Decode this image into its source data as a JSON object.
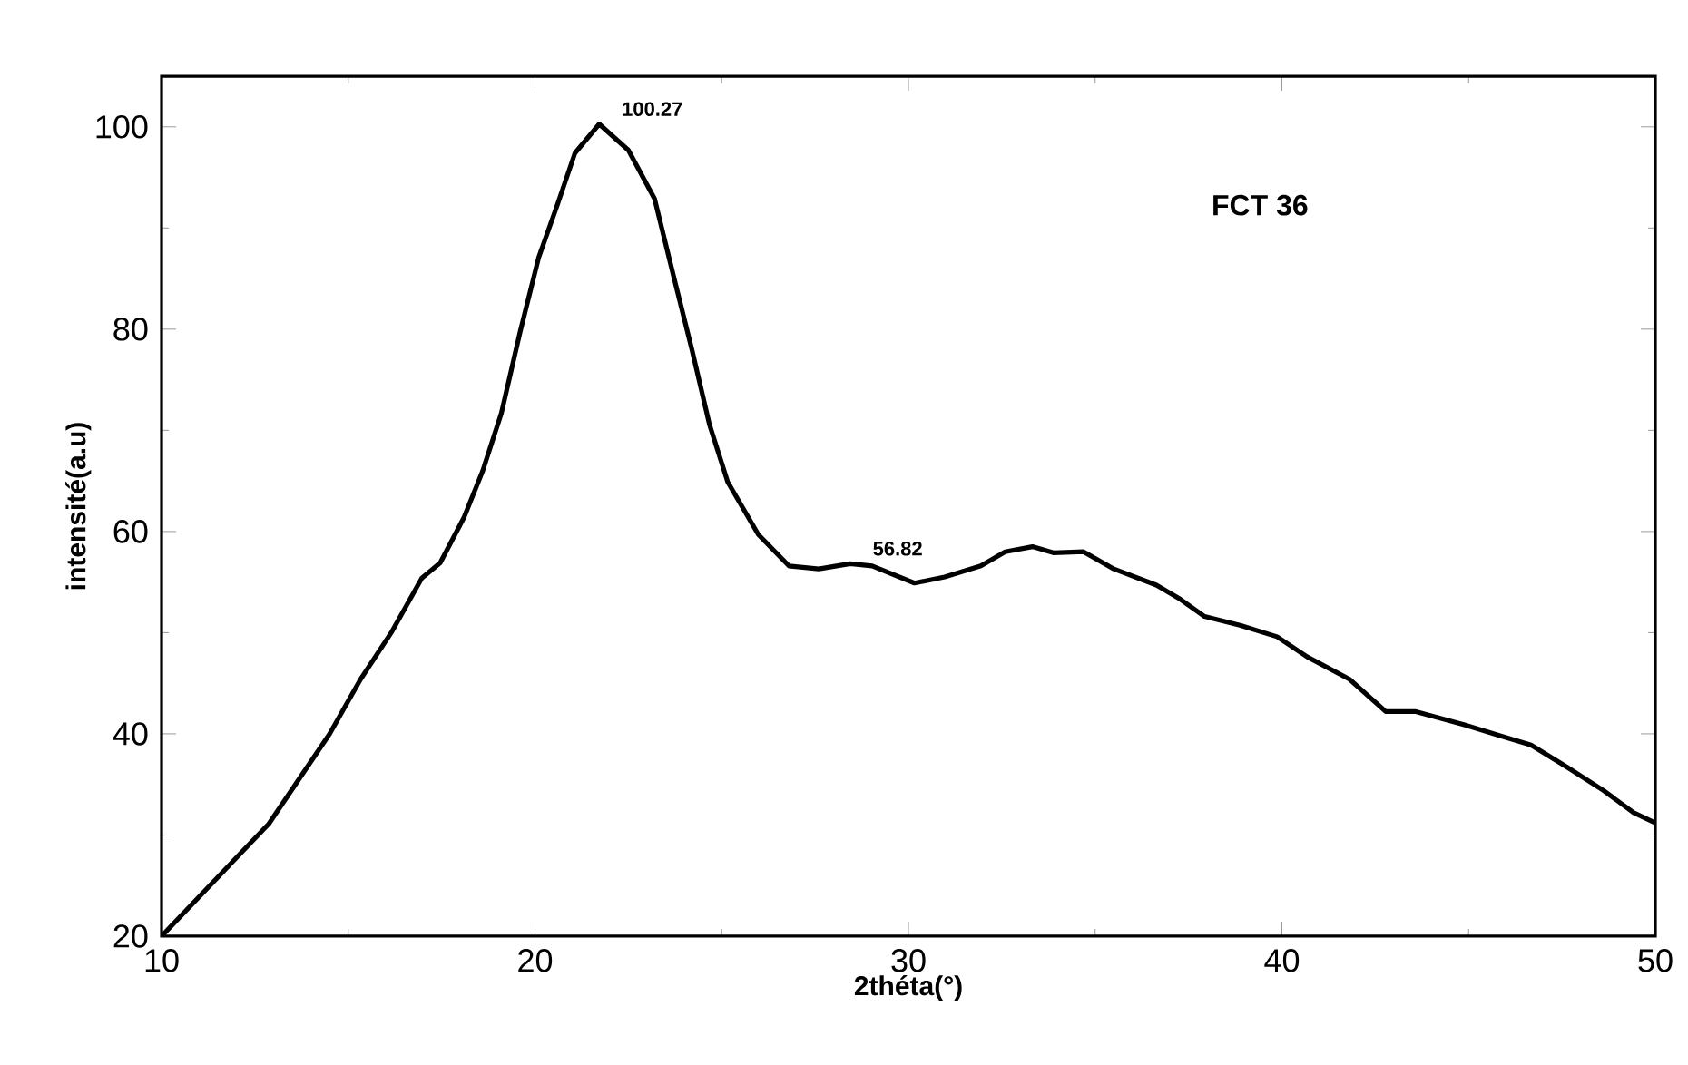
{
  "chart_data": {
    "type": "line",
    "xlabel": "2théta(°)",
    "ylabel": "intensité(a.u)",
    "xlim": [
      10,
      50
    ],
    "ylim": [
      20,
      105
    ],
    "xticks": [
      10,
      20,
      30,
      40,
      50
    ],
    "yticks": [
      20,
      40,
      60,
      80,
      100
    ],
    "grid": false,
    "marker": "none",
    "line_style": "solid",
    "x": [
      10.0,
      12.87,
      14.5,
      15.33,
      16.15,
      16.97,
      17.46,
      18.1,
      18.6,
      19.1,
      19.6,
      20.1,
      20.6,
      21.07,
      21.72,
      22.5,
      23.2,
      23.7,
      24.2,
      24.67,
      25.16,
      25.98,
      26.8,
      27.6,
      28.44,
      29.03,
      30.16,
      30.97,
      31.94,
      32.59,
      33.32,
      33.88,
      34.69,
      35.5,
      36.64,
      37.28,
      37.93,
      38.9,
      39.87,
      40.68,
      41.81,
      42.78,
      43.59,
      44.89,
      45.86,
      46.67,
      47.64,
      48.61,
      49.42,
      50.0
    ],
    "series": [
      {
        "color": "#000000",
        "values": [
          20,
          31.1,
          40,
          45.4,
          50,
          55.4,
          56.9,
          61.4,
          66,
          71.7,
          79.7,
          87.1,
          92.3,
          97.4,
          100.27,
          97.7,
          92.9,
          85.4,
          78,
          70.6,
          64.9,
          59.7,
          56.6,
          56.3,
          56.82,
          56.6,
          54.9,
          55.5,
          56.6,
          58.0,
          58.5,
          57.9,
          58.0,
          56.3,
          54.7,
          53.3,
          51.6,
          50.7,
          49.6,
          47.6,
          45.4,
          42.2,
          42.2,
          40.9,
          39.8,
          38.9,
          36.7,
          34.4,
          32.2,
          31.2
        ]
      }
    ],
    "annotations": [
      {
        "text": "100.27",
        "x": 21.72,
        "y": 100.27
      },
      {
        "text": "56.82",
        "x": 28.44,
        "y": 56.82
      },
      "FCT 36"
    ]
  }
}
